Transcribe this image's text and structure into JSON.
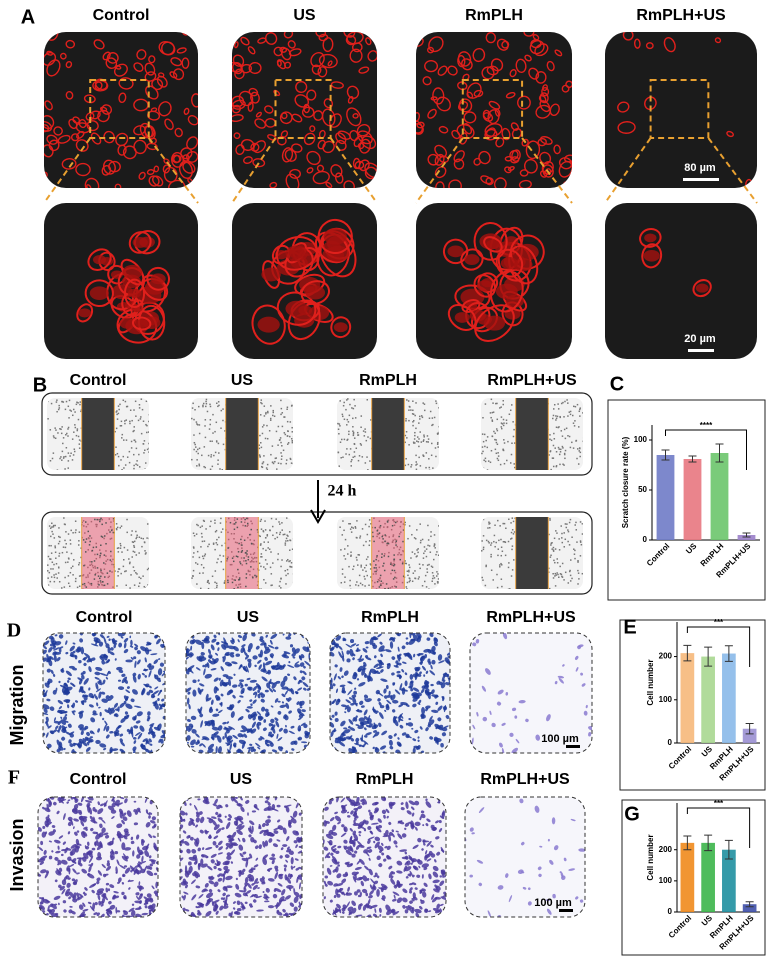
{
  "figure": {
    "panel_a": {
      "label": "A",
      "groups": [
        "Control",
        "US",
        "RmPLH",
        "RmPLH+US"
      ],
      "scale_bars": [
        "80 µm",
        "20 µm"
      ]
    },
    "panel_b": {
      "label": "B",
      "groups": [
        "Control",
        "US",
        "RmPLH",
        "RmPLH+US"
      ],
      "time": "24 h"
    },
    "panel_d": {
      "label": "D",
      "row_label": "Migration",
      "groups": [
        "Control",
        "US",
        "RmPLH",
        "RmPLH+US"
      ],
      "scale_bar": "100 µm"
    },
    "panel_f": {
      "label": "F",
      "row_label": "Invasion",
      "groups": [
        "Control",
        "US",
        "RmPLH",
        "RmPLH+US"
      ],
      "scale_bar": "100 µm"
    }
  },
  "chart_data": [
    {
      "type": "bar",
      "panel_label": "C",
      "y_label": "Scratch closure rate (%)",
      "categories": [
        "Control",
        "US",
        "RmPLH",
        "RmPLH+US"
      ],
      "values": [
        85,
        81,
        87,
        5
      ],
      "errors": [
        5,
        3,
        9,
        2
      ],
      "colors": [
        "#6f7bc6",
        "#e8777f",
        "#6cc56c",
        "#9a80c9"
      ],
      "ylim": [
        0,
        115
      ],
      "yticks": [
        0,
        50,
        100
      ],
      "annotation": "****"
    },
    {
      "type": "bar",
      "panel_label": "E",
      "y_label": "Cell number",
      "categories": [
        "Control",
        "US",
        "RmPLH",
        "RmPLH+US"
      ],
      "values": [
        208,
        200,
        207,
        33
      ],
      "errors": [
        18,
        22,
        18,
        12
      ],
      "colors": [
        "#f6b87a",
        "#a8d790",
        "#8ab9e9",
        "#9a8fd1"
      ],
      "ylim": [
        0,
        280
      ],
      "yticks": [
        0,
        100,
        200
      ],
      "annotation": "***"
    },
    {
      "type": "bar",
      "panel_label": "G",
      "y_label": "Cell number",
      "categories": [
        "Control",
        "US",
        "RmPLH",
        "RmPLH+US"
      ],
      "values": [
        222,
        222,
        200,
        25
      ],
      "errors": [
        22,
        25,
        30,
        8
      ],
      "colors": [
        "#f08a1c",
        "#3cb54a",
        "#1f8fa0",
        "#3e4fa8"
      ],
      "ylim": [
        0,
        350
      ],
      "yticks": [
        0,
        100,
        200
      ],
      "annotation": "***"
    }
  ]
}
